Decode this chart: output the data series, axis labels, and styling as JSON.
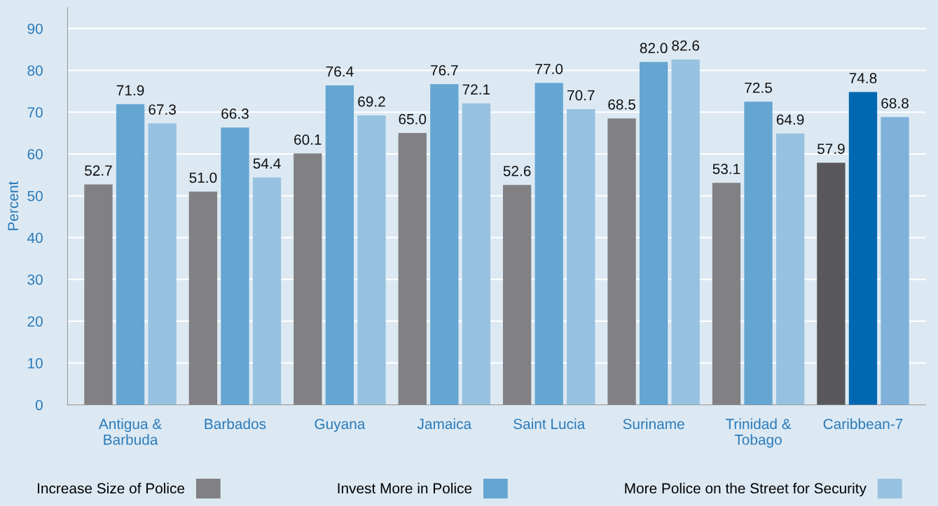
{
  "chart_data": {
    "type": "bar",
    "ylabel": "Percent",
    "categories": [
      "Antigua &\nBarbuda",
      "Barbados",
      "Guyana",
      "Jamaica",
      "Saint Lucia",
      "Suriname",
      "Trinidad &\nTobago",
      "Caribbean-7"
    ],
    "series": [
      {
        "name": "Increase Size of Police",
        "color": "#818083",
        "colors": [
          "#818083",
          "#818083",
          "#818083",
          "#818083",
          "#818083",
          "#818083",
          "#818083",
          "#58585a"
        ],
        "values": [
          52.7,
          51.0,
          60.1,
          65.0,
          52.6,
          68.5,
          53.1,
          57.9
        ],
        "value_labels": [
          "52.7",
          "51.0",
          "60.1",
          "65.0",
          "52.6",
          "68.5",
          "53.1",
          "57.9"
        ]
      },
      {
        "name": "Invest More in Police",
        "color": "#65a5d1",
        "colors": [
          "#65a5d1",
          "#65a5d1",
          "#65a5d1",
          "#65a5d1",
          "#65a5d1",
          "#65a5d1",
          "#65a5d1",
          "#0067b1"
        ],
        "values": [
          71.9,
          66.3,
          76.4,
          76.7,
          77.0,
          82.0,
          72.5,
          74.8
        ],
        "value_labels": [
          "71.9",
          "66.3",
          "76.4",
          "76.7",
          "77.0",
          "82.0",
          "72.5",
          "74.8"
        ]
      },
      {
        "name": "More Police on the Street for Security",
        "color": "#97c1e0",
        "colors": [
          "#97c1e0",
          "#97c1e0",
          "#97c1e0",
          "#97c1e0",
          "#97c1e0",
          "#97c1e0",
          "#97c1e0",
          "#7fb1da"
        ],
        "values": [
          67.3,
          54.4,
          69.2,
          72.1,
          70.7,
          82.6,
          64.9,
          68.8
        ],
        "value_labels": [
          "67.3",
          "54.4",
          "69.2",
          "72.1",
          "70.7",
          "82.6",
          "64.9",
          "68.8"
        ]
      }
    ],
    "ylim": [
      0,
      95
    ],
    "yticks": [
      0,
      10,
      20,
      30,
      40,
      50,
      60,
      70,
      80,
      90
    ],
    "grid": "y",
    "legend": "bottom"
  }
}
